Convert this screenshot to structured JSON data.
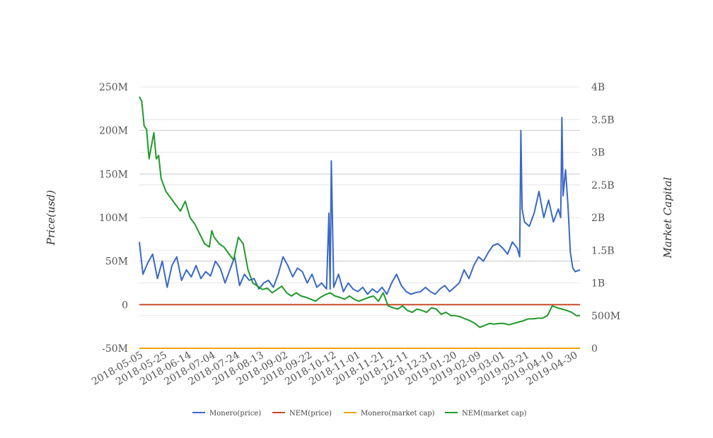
{
  "chart_data": {
    "type": "line",
    "ylabel": "Price(usd)",
    "y2label": "Market Capital",
    "ylim": [
      -50000000,
      250000000
    ],
    "y2lim": [
      0,
      4000000000
    ],
    "y_ticks": [
      "250M",
      "200M",
      "150M",
      "100M",
      "50M",
      "0",
      "-50M"
    ],
    "y2_ticks": [
      "4B",
      "3.5B",
      "3B",
      "2.5B",
      "2B",
      "1.5B",
      "1B",
      "500M",
      "0"
    ],
    "x_ticks": [
      "2018-05-05",
      "2018-05-25",
      "2018-06-14",
      "2018-07-04",
      "2018-07-24",
      "2018-08-13",
      "2018-09-02",
      "2018-09-22",
      "2018-10-12",
      "2018-11-01",
      "2018-11-21",
      "2018-12-11",
      "2018-12-31",
      "2019-01-20",
      "2019-02-09",
      "2019-03-01",
      "2019-03-21",
      "2019-04-10",
      "2019-04-30"
    ],
    "x_range": [
      "2018-05-05",
      "2019-05-05"
    ],
    "grid": true,
    "legend_position": "bottom",
    "series": [
      {
        "name": "Monero(price)",
        "axis": "left",
        "color": "#3a68c6",
        "x": [
          "2018-05-05",
          "2018-05-08",
          "2018-05-12",
          "2018-05-16",
          "2018-05-20",
          "2018-05-24",
          "2018-05-28",
          "2018-06-01",
          "2018-06-05",
          "2018-06-09",
          "2018-06-13",
          "2018-06-17",
          "2018-06-21",
          "2018-06-25",
          "2018-06-29",
          "2018-07-03",
          "2018-07-07",
          "2018-07-11",
          "2018-07-15",
          "2018-07-19",
          "2018-07-23",
          "2018-07-27",
          "2018-07-31",
          "2018-08-04",
          "2018-08-08",
          "2018-08-12",
          "2018-08-16",
          "2018-08-20",
          "2018-08-24",
          "2018-08-28",
          "2018-09-01",
          "2018-09-05",
          "2018-09-09",
          "2018-09-13",
          "2018-09-17",
          "2018-09-21",
          "2018-09-25",
          "2018-09-29",
          "2018-10-03",
          "2018-10-07",
          "2018-10-09",
          "2018-10-10",
          "2018-10-11",
          "2018-10-13",
          "2018-10-17",
          "2018-10-21",
          "2018-10-25",
          "2018-10-29",
          "2018-11-02",
          "2018-11-06",
          "2018-11-10",
          "2018-11-14",
          "2018-11-18",
          "2018-11-22",
          "2018-11-26",
          "2018-11-30",
          "2018-12-04",
          "2018-12-08",
          "2018-12-12",
          "2018-12-16",
          "2018-12-20",
          "2018-12-24",
          "2018-12-28",
          "2019-01-01",
          "2019-01-05",
          "2019-01-09",
          "2019-01-13",
          "2019-01-17",
          "2019-01-21",
          "2019-01-25",
          "2019-01-29",
          "2019-02-02",
          "2019-02-06",
          "2019-02-10",
          "2019-02-14",
          "2019-02-18",
          "2019-02-22",
          "2019-02-26",
          "2019-03-02",
          "2019-03-06",
          "2019-03-10",
          "2019-03-14",
          "2019-03-16",
          "2019-03-17",
          "2019-03-18",
          "2019-03-20",
          "2019-03-24",
          "2019-03-28",
          "2019-04-01",
          "2019-04-05",
          "2019-04-09",
          "2019-04-13",
          "2019-04-17",
          "2019-04-19",
          "2019-04-20",
          "2019-04-21",
          "2019-04-23",
          "2019-04-25",
          "2019-04-27",
          "2019-04-29",
          "2019-05-01",
          "2019-05-05"
        ],
        "values": [
          72,
          35,
          48,
          58,
          30,
          50,
          20,
          45,
          55,
          28,
          40,
          32,
          45,
          30,
          38,
          33,
          50,
          42,
          25,
          40,
          55,
          22,
          35,
          28,
          30,
          18,
          25,
          28,
          20,
          35,
          55,
          45,
          32,
          42,
          38,
          25,
          35,
          20,
          25,
          18,
          105,
          18,
          165,
          20,
          35,
          15,
          25,
          18,
          15,
          20,
          12,
          18,
          14,
          20,
          12,
          25,
          35,
          22,
          15,
          12,
          14,
          15,
          20,
          15,
          12,
          18,
          22,
          15,
          20,
          25,
          40,
          30,
          45,
          55,
          50,
          60,
          68,
          70,
          65,
          58,
          72,
          65,
          55,
          200,
          110,
          95,
          90,
          105,
          130,
          100,
          120,
          95,
          110,
          100,
          215,
          125,
          155,
          115,
          60,
          42,
          38,
          40
        ]
      },
      {
        "name": "NEM(price)",
        "axis": "left",
        "color": "#c94a2a",
        "x": [
          "2018-05-05",
          "2019-05-05"
        ],
        "values": [
          0,
          0
        ]
      },
      {
        "name": "Monero(market cap)",
        "axis": "right",
        "color": "#f0a500",
        "x": [
          "2018-05-05",
          "2019-05-05"
        ],
        "values": [
          0,
          0
        ]
      },
      {
        "name": "NEM(market cap)",
        "axis": "right",
        "color": "#1f9a2a",
        "x": [
          "2018-05-05",
          "2018-05-07",
          "2018-05-09",
          "2018-05-11",
          "2018-05-13",
          "2018-05-15",
          "2018-05-17",
          "2018-05-19",
          "2018-05-21",
          "2018-05-23",
          "2018-05-27",
          "2018-05-31",
          "2018-06-04",
          "2018-06-08",
          "2018-06-12",
          "2018-06-16",
          "2018-06-20",
          "2018-06-24",
          "2018-06-28",
          "2018-07-02",
          "2018-07-04",
          "2018-07-06",
          "2018-07-10",
          "2018-07-14",
          "2018-07-18",
          "2018-07-22",
          "2018-07-26",
          "2018-07-30",
          "2018-08-03",
          "2018-08-07",
          "2018-08-11",
          "2018-08-15",
          "2018-08-19",
          "2018-08-23",
          "2018-08-27",
          "2018-08-31",
          "2018-09-04",
          "2018-09-08",
          "2018-09-12",
          "2018-09-16",
          "2018-09-20",
          "2018-09-24",
          "2018-09-28",
          "2018-10-02",
          "2018-10-06",
          "2018-10-10",
          "2018-10-14",
          "2018-10-18",
          "2018-10-22",
          "2018-10-26",
          "2018-10-30",
          "2018-11-03",
          "2018-11-07",
          "2018-11-11",
          "2018-11-15",
          "2018-11-19",
          "2018-11-23",
          "2018-11-27",
          "2018-12-01",
          "2018-12-05",
          "2018-12-09",
          "2018-12-13",
          "2018-12-17",
          "2018-12-21",
          "2018-12-25",
          "2018-12-29",
          "2019-01-02",
          "2019-01-06",
          "2019-01-10",
          "2019-01-14",
          "2019-01-18",
          "2019-01-22",
          "2019-01-26",
          "2019-01-30",
          "2019-02-03",
          "2019-02-07",
          "2019-02-11",
          "2019-02-15",
          "2019-02-19",
          "2019-02-23",
          "2019-02-27",
          "2019-03-03",
          "2019-03-07",
          "2019-03-11",
          "2019-03-15",
          "2019-03-19",
          "2019-03-23",
          "2019-03-27",
          "2019-03-31",
          "2019-04-04",
          "2019-04-08",
          "2019-04-12",
          "2019-04-16",
          "2019-04-20",
          "2019-04-24",
          "2019-04-28",
          "2019-05-02",
          "2019-05-05"
        ],
        "values": [
          3.85,
          3.78,
          3.4,
          3.35,
          2.9,
          3.1,
          3.3,
          2.9,
          2.95,
          2.6,
          2.4,
          2.3,
          2.2,
          2.1,
          2.25,
          2.0,
          1.9,
          1.75,
          1.6,
          1.55,
          1.8,
          1.7,
          1.6,
          1.55,
          1.45,
          1.35,
          1.7,
          1.6,
          1.2,
          1.0,
          0.95,
          0.9,
          0.92,
          0.85,
          0.9,
          0.95,
          0.85,
          0.8,
          0.85,
          0.8,
          0.78,
          0.75,
          0.72,
          0.78,
          0.82,
          0.85,
          0.8,
          0.78,
          0.75,
          0.8,
          0.75,
          0.72,
          0.75,
          0.78,
          0.8,
          0.72,
          0.85,
          0.65,
          0.62,
          0.6,
          0.65,
          0.58,
          0.55,
          0.6,
          0.58,
          0.55,
          0.62,
          0.6,
          0.52,
          0.55,
          0.5,
          0.5,
          0.48,
          0.45,
          0.42,
          0.38,
          0.32,
          0.35,
          0.38,
          0.37,
          0.38,
          0.38,
          0.36,
          0.38,
          0.4,
          0.42,
          0.45,
          0.45,
          0.46,
          0.46,
          0.5,
          0.65,
          0.62,
          0.6,
          0.58,
          0.55,
          0.5,
          0.5
        ]
      }
    ]
  }
}
